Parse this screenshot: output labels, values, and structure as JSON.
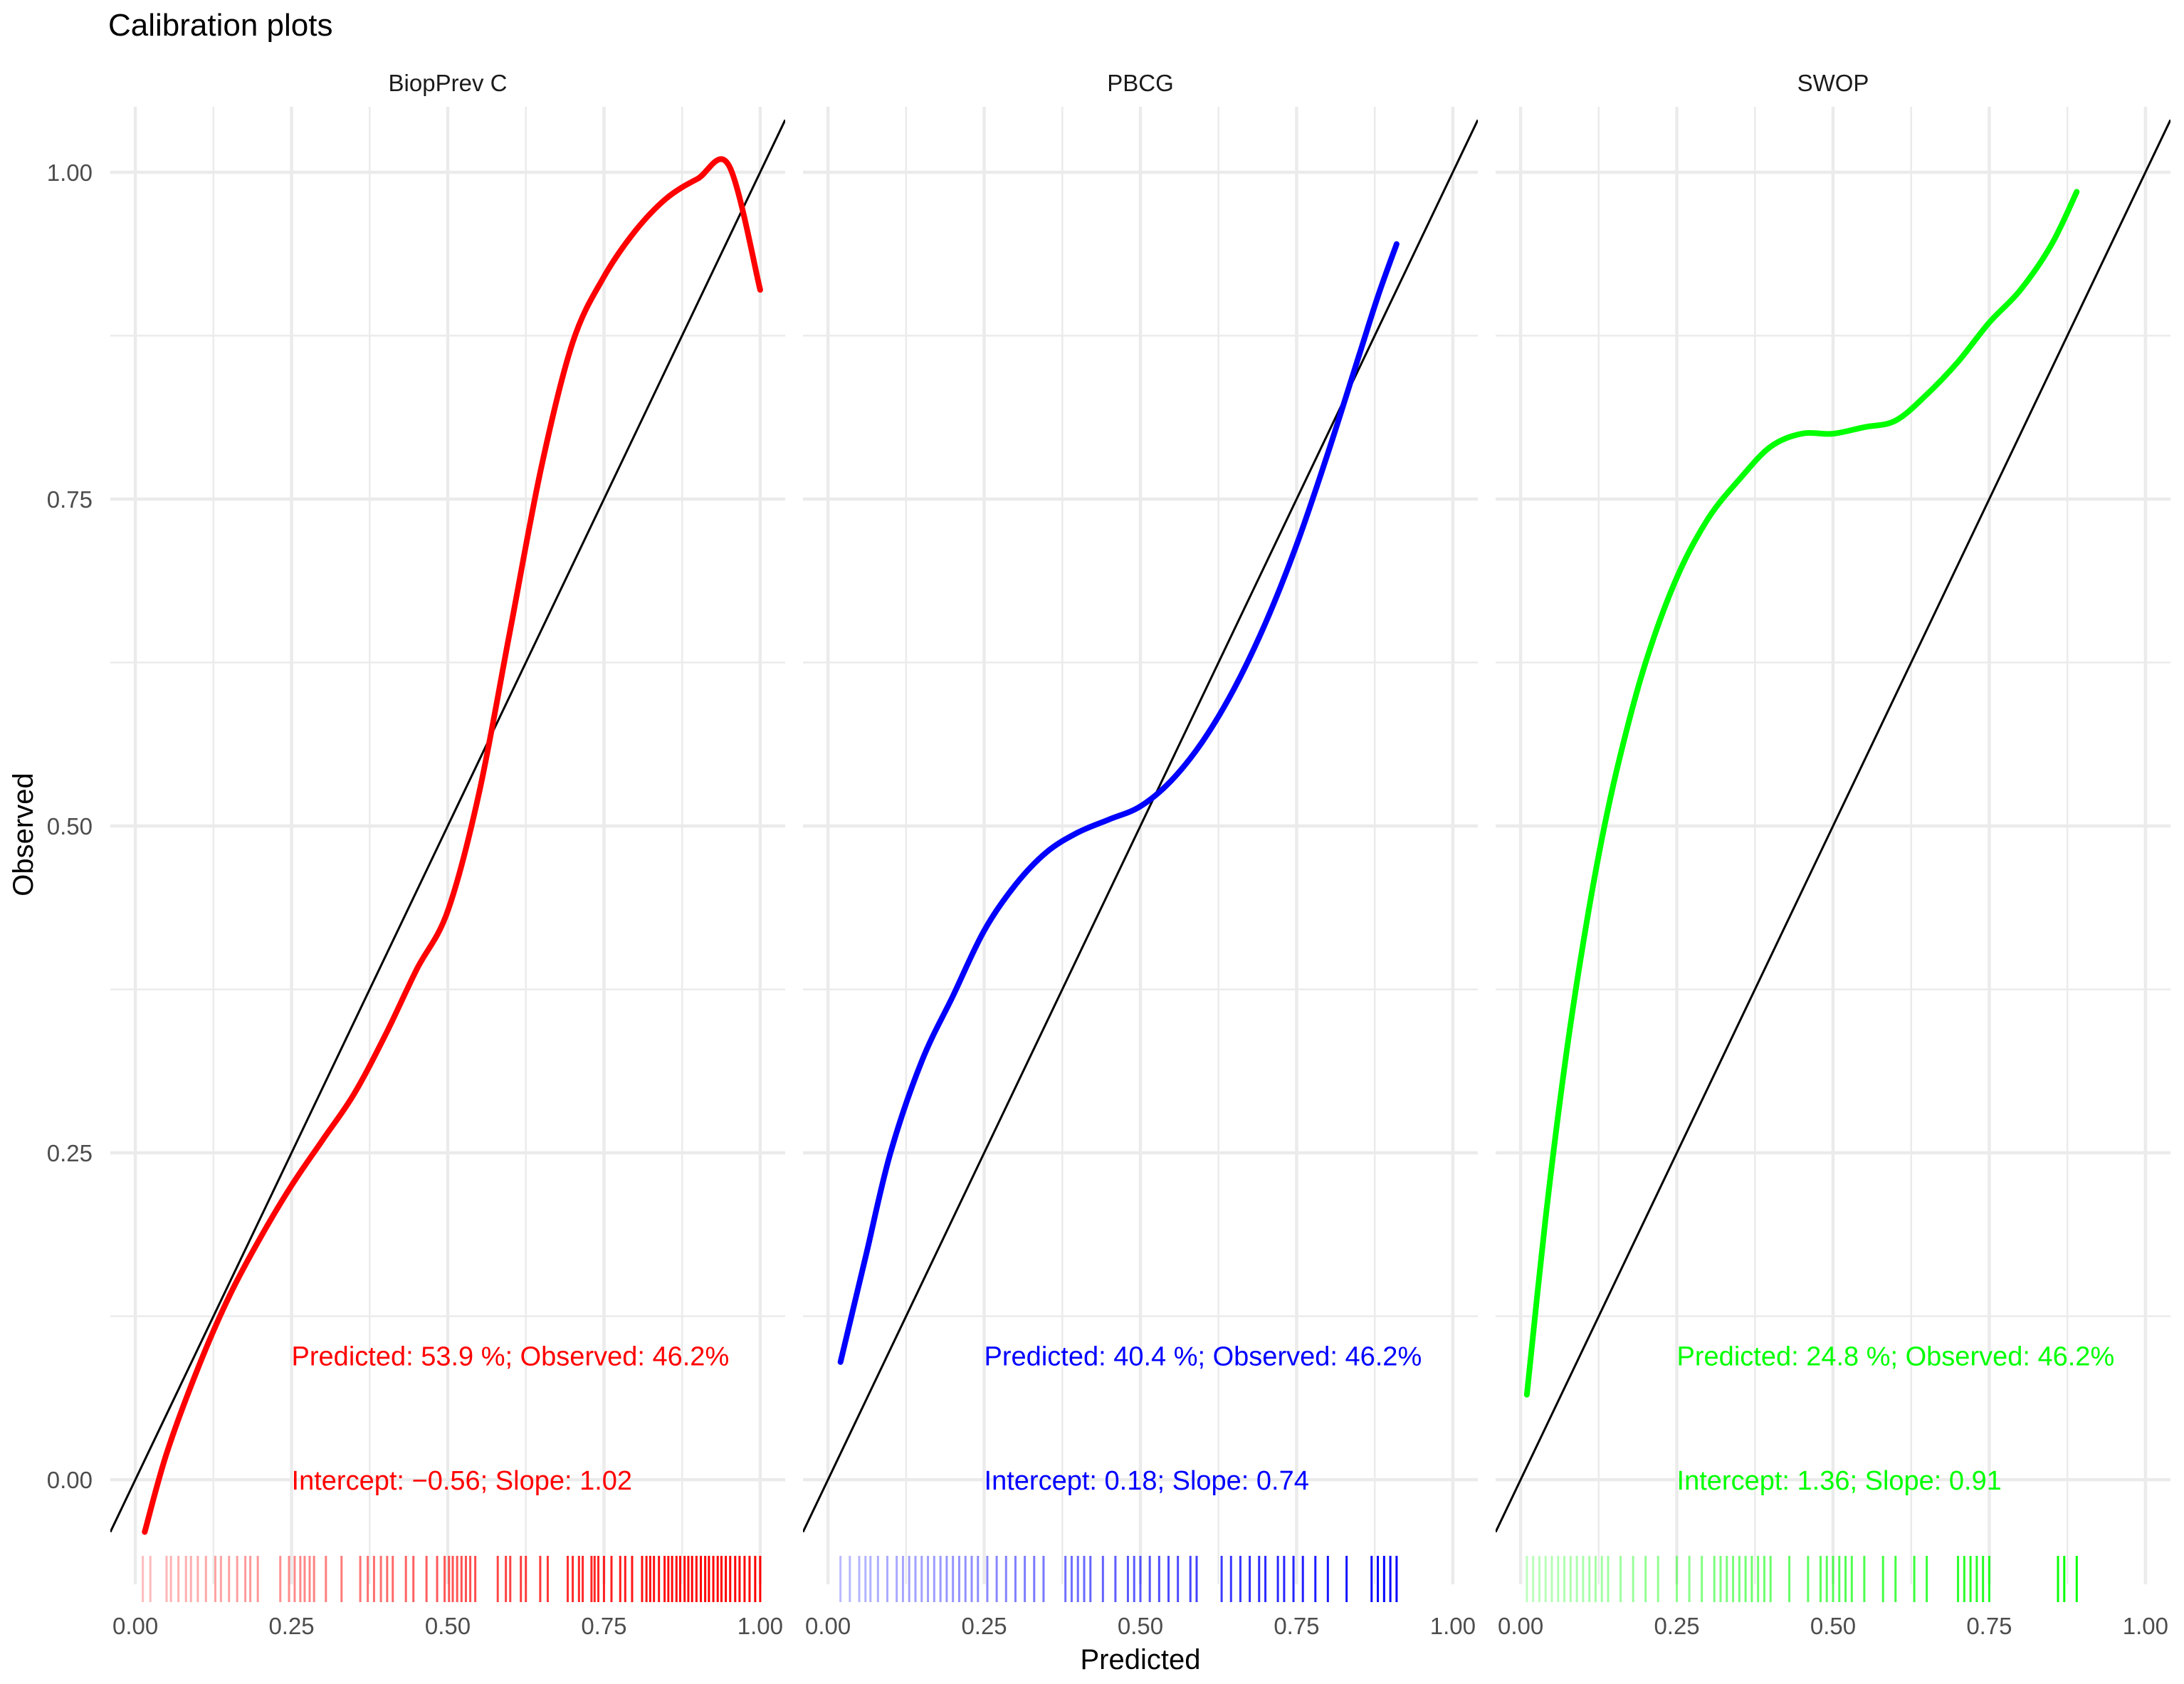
{
  "chart_data": {
    "type": "line",
    "title": "Calibration plots",
    "xlabel": "Predicted",
    "ylabel": "Observed",
    "xlim": [
      -0.04,
      1.04
    ],
    "ylim": [
      -0.08,
      1.05
    ],
    "xticks": [
      "0.00",
      "0.25",
      "0.50",
      "0.75",
      "1.00"
    ],
    "xtick_values": [
      0,
      0.25,
      0.5,
      0.75,
      1.0
    ],
    "yticks": [
      "0.00",
      "0.25",
      "0.50",
      "0.75",
      "1.00"
    ],
    "ytick_values": [
      0,
      0.25,
      0.5,
      0.75,
      1.0
    ],
    "grid": true,
    "reference_line": {
      "slope": 1,
      "intercept": 0,
      "color": "#000000"
    },
    "panels": [
      {
        "name": "BiopPrev C",
        "color": "#ff0000",
        "curve": [
          [
            0.015,
            -0.04
          ],
          [
            0.05,
            0.02
          ],
          [
            0.1,
            0.085
          ],
          [
            0.15,
            0.14
          ],
          [
            0.2,
            0.185
          ],
          [
            0.25,
            0.225
          ],
          [
            0.3,
            0.26
          ],
          [
            0.35,
            0.295
          ],
          [
            0.4,
            0.34
          ],
          [
            0.45,
            0.39
          ],
          [
            0.5,
            0.435
          ],
          [
            0.55,
            0.525
          ],
          [
            0.6,
            0.65
          ],
          [
            0.65,
            0.775
          ],
          [
            0.7,
            0.87
          ],
          [
            0.75,
            0.92
          ],
          [
            0.8,
            0.955
          ],
          [
            0.85,
            0.98
          ],
          [
            0.9,
            0.995
          ],
          [
            0.95,
            1.005
          ],
          [
            1.0,
            0.91
          ]
        ],
        "summary": "Predicted: 53.9 %; Observed: 46.2%",
        "stats": "Intercept: −0.56; Slope: 1.02",
        "rug": [
          0.012,
          0.024,
          0.05,
          0.057,
          0.069,
          0.081,
          0.089,
          0.1,
          0.113,
          0.128,
          0.137,
          0.15,
          0.163,
          0.176,
          0.184,
          0.196,
          0.232,
          0.246,
          0.255,
          0.264,
          0.271,
          0.279,
          0.286,
          0.305,
          0.33,
          0.36,
          0.372,
          0.382,
          0.393,
          0.403,
          0.412,
          0.433,
          0.445,
          0.466,
          0.483,
          0.495,
          0.502,
          0.508,
          0.515,
          0.522,
          0.529,
          0.536,
          0.544,
          0.58,
          0.593,
          0.6,
          0.617,
          0.625,
          0.648,
          0.66,
          0.692,
          0.7,
          0.71,
          0.716,
          0.73,
          0.735,
          0.741,
          0.75,
          0.762,
          0.776,
          0.784,
          0.795,
          0.811,
          0.818,
          0.824,
          0.83,
          0.838,
          0.847,
          0.853,
          0.859,
          0.866,
          0.872,
          0.879,
          0.885,
          0.891,
          0.898,
          0.905,
          0.912,
          0.918,
          0.925,
          0.932,
          0.938,
          0.945,
          0.952,
          0.96,
          0.967,
          0.975,
          0.983,
          0.992,
          1.0
        ]
      },
      {
        "name": "PBCG",
        "color": "#0000ff",
        "curve": [
          [
            0.02,
            0.09
          ],
          [
            0.06,
            0.17
          ],
          [
            0.1,
            0.25
          ],
          [
            0.15,
            0.32
          ],
          [
            0.2,
            0.37
          ],
          [
            0.25,
            0.42
          ],
          [
            0.3,
            0.455
          ],
          [
            0.35,
            0.48
          ],
          [
            0.4,
            0.495
          ],
          [
            0.45,
            0.505
          ],
          [
            0.5,
            0.515
          ],
          [
            0.55,
            0.535
          ],
          [
            0.6,
            0.565
          ],
          [
            0.65,
            0.605
          ],
          [
            0.7,
            0.655
          ],
          [
            0.75,
            0.715
          ],
          [
            0.8,
            0.785
          ],
          [
            0.85,
            0.86
          ],
          [
            0.88,
            0.905
          ],
          [
            0.91,
            0.945
          ]
        ],
        "summary": "Predicted: 40.4 %; Observed: 46.2%",
        "stats": "Intercept: 0.18; Slope: 0.74",
        "rug": [
          0.02,
          0.035,
          0.05,
          0.06,
          0.068,
          0.08,
          0.095,
          0.11,
          0.12,
          0.13,
          0.14,
          0.15,
          0.16,
          0.17,
          0.18,
          0.19,
          0.2,
          0.21,
          0.22,
          0.23,
          0.24,
          0.255,
          0.27,
          0.285,
          0.3,
          0.315,
          0.33,
          0.345,
          0.38,
          0.39,
          0.4,
          0.41,
          0.42,
          0.44,
          0.46,
          0.48,
          0.49,
          0.5,
          0.515,
          0.53,
          0.545,
          0.56,
          0.58,
          0.59,
          0.63,
          0.645,
          0.66,
          0.675,
          0.69,
          0.7,
          0.72,
          0.73,
          0.745,
          0.76,
          0.78,
          0.8,
          0.83,
          0.87,
          0.88,
          0.89,
          0.9,
          0.91
        ]
      },
      {
        "name": "SWOP",
        "color": "#00ff00",
        "curve": [
          [
            0.01,
            0.065
          ],
          [
            0.04,
            0.2
          ],
          [
            0.07,
            0.315
          ],
          [
            0.1,
            0.41
          ],
          [
            0.13,
            0.49
          ],
          [
            0.16,
            0.555
          ],
          [
            0.2,
            0.625
          ],
          [
            0.25,
            0.69
          ],
          [
            0.3,
            0.735
          ],
          [
            0.35,
            0.765
          ],
          [
            0.4,
            0.79
          ],
          [
            0.45,
            0.8
          ],
          [
            0.5,
            0.8
          ],
          [
            0.55,
            0.805
          ],
          [
            0.6,
            0.81
          ],
          [
            0.65,
            0.83
          ],
          [
            0.7,
            0.855
          ],
          [
            0.75,
            0.885
          ],
          [
            0.8,
            0.91
          ],
          [
            0.85,
            0.945
          ],
          [
            0.89,
            0.985
          ]
        ],
        "summary": "Predicted: 24.8 %; Observed: 46.2%",
        "stats": "Intercept: 1.36; Slope: 0.91",
        "rug": [
          0.01,
          0.02,
          0.03,
          0.04,
          0.05,
          0.06,
          0.07,
          0.08,
          0.09,
          0.1,
          0.11,
          0.12,
          0.13,
          0.14,
          0.16,
          0.18,
          0.2,
          0.22,
          0.25,
          0.27,
          0.29,
          0.31,
          0.32,
          0.33,
          0.34,
          0.35,
          0.36,
          0.37,
          0.38,
          0.39,
          0.4,
          0.43,
          0.46,
          0.48,
          0.49,
          0.5,
          0.51,
          0.52,
          0.53,
          0.55,
          0.58,
          0.6,
          0.63,
          0.65,
          0.7,
          0.71,
          0.72,
          0.73,
          0.74,
          0.75,
          0.86,
          0.87,
          0.89
        ]
      }
    ]
  }
}
